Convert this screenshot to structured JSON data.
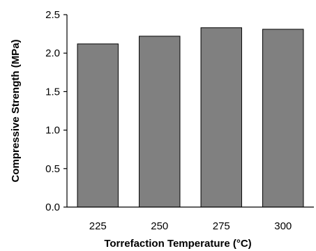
{
  "chart_data": {
    "type": "bar",
    "title": "",
    "xlabel": "Torrefaction Temperature (°C)",
    "ylabel": "Compressive Strength (MPa)",
    "categories": [
      "225",
      "250",
      "275",
      "300"
    ],
    "values": [
      2.12,
      2.22,
      2.33,
      2.31
    ],
    "ylim": [
      0,
      2.5
    ],
    "yticks": [
      "0.0",
      "0.5",
      "1.0",
      "1.5",
      "2.0",
      "2.5"
    ],
    "bar_color": "#808080",
    "grid": false,
    "legend": false
  }
}
